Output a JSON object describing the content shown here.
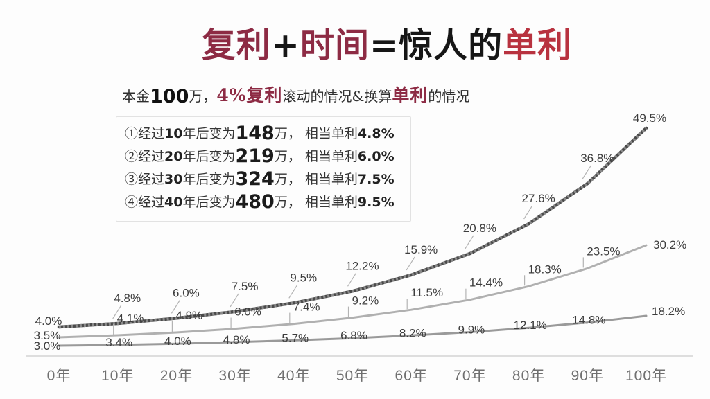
{
  "colors": {
    "maroon": "#8d2b44",
    "red": "#b8323f",
    "chart_label": "#3d3d3d",
    "axis_text": "#6f6f6f",
    "leader": "#b3b3b3",
    "axis_line": "#dedede"
  },
  "title": {
    "parts": [
      {
        "text": "复利",
        "style": "maroon"
      },
      {
        "text": "+",
        "style": "black"
      },
      {
        "text": "时间",
        "style": "maroon"
      },
      {
        "text": "=",
        "style": "black"
      },
      {
        "text": "惊人的",
        "style": "black"
      },
      {
        "text": "单利",
        "style": "red"
      }
    ]
  },
  "subtitle": {
    "parts": [
      {
        "text": "本金",
        "style": "plain"
      },
      {
        "text": "100",
        "style": "big-num"
      },
      {
        "text": "万，",
        "style": "plain"
      },
      {
        "text": "4%复利",
        "style": "accent"
      },
      {
        "text": "滚动的情况&换算",
        "style": "plain"
      },
      {
        "text": "单利",
        "style": "accent"
      },
      {
        "text": "的情况",
        "style": "plain"
      }
    ]
  },
  "notes": [
    {
      "parts": [
        {
          "text": "①经过",
          "style": "plain"
        },
        {
          "text": "10",
          "style": "num"
        },
        {
          "text": "年后变为",
          "style": "plain"
        },
        {
          "text": "148",
          "style": "amount"
        },
        {
          "text": "万，",
          "style": "plain"
        },
        {
          "text": " 相当单利",
          "style": "plain"
        },
        {
          "text": "4.8%",
          "style": "num"
        }
      ]
    },
    {
      "parts": [
        {
          "text": "②经过",
          "style": "plain"
        },
        {
          "text": "20",
          "style": "num"
        },
        {
          "text": "年后变为",
          "style": "plain"
        },
        {
          "text": "219",
          "style": "amount"
        },
        {
          "text": "万，",
          "style": "plain"
        },
        {
          "text": " 相当单利",
          "style": "plain"
        },
        {
          "text": "6.0%",
          "style": "num"
        }
      ]
    },
    {
      "parts": [
        {
          "text": "③经过",
          "style": "plain"
        },
        {
          "text": "30",
          "style": "num"
        },
        {
          "text": "年后变为",
          "style": "plain"
        },
        {
          "text": "324",
          "style": "amount"
        },
        {
          "text": "万，",
          "style": "plain"
        },
        {
          "text": " 相当单利",
          "style": "plain"
        },
        {
          "text": "7.5%",
          "style": "num"
        }
      ]
    },
    {
      "parts": [
        {
          "text": "④经过",
          "style": "plain"
        },
        {
          "text": "40",
          "style": "num"
        },
        {
          "text": "年后变为",
          "style": "plain"
        },
        {
          "text": "480",
          "style": "amount"
        },
        {
          "text": "万，",
          "style": "plain"
        },
        {
          "text": " 相当单利",
          "style": "plain"
        },
        {
          "text": "9.5%",
          "style": "num"
        }
      ]
    }
  ],
  "chart_data": {
    "type": "line",
    "title": "",
    "xlabel": "",
    "ylabel": "",
    "grid": false,
    "legend": "none",
    "x_categories": [
      "0年",
      "10年",
      "20年",
      "30年",
      "40年",
      "50年",
      "60年",
      "70年",
      "80年",
      "90年",
      "100年"
    ],
    "value_unit": "%",
    "series": [
      {
        "id": "top-line",
        "color": "#4a4a4a",
        "values": [
          4.0,
          4.8,
          6.0,
          7.5,
          9.5,
          12.2,
          15.9,
          20.8,
          27.6,
          36.8,
          49.5
        ]
      },
      {
        "id": "middle-line",
        "color": "#b0b0b0",
        "values": [
          3.5,
          4.1,
          4.9,
          6.0,
          7.4,
          9.2,
          11.5,
          14.4,
          18.3,
          23.5,
          30.2
        ]
      },
      {
        "id": "bottom-line",
        "color": "#9a9a9a",
        "values": [
          3.0,
          3.4,
          4.0,
          4.8,
          5.7,
          6.8,
          8.2,
          9.9,
          12.1,
          14.8,
          18.2
        ]
      }
    ]
  }
}
